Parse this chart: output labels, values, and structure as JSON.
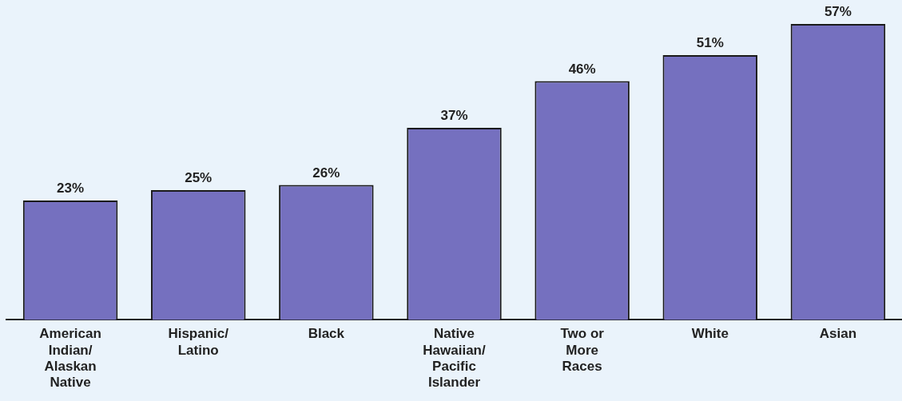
{
  "chart_data": {
    "type": "bar",
    "categories": [
      "American Indian/ Alaskan Native",
      "Hispanic/ Latino",
      "Black",
      "Native Hawaiian/ Pacific Islander",
      "Two or More Races",
      "White",
      "Asian"
    ],
    "values": [
      23,
      25,
      26,
      37,
      46,
      51,
      57
    ],
    "color": "#7570bf",
    "relative": false,
    "data_labels": true,
    "value_labels": [
      "23%",
      "25%",
      "26%",
      "37%",
      "46%",
      "51%",
      "57%"
    ],
    "grid": false,
    "legend": false
  }
}
